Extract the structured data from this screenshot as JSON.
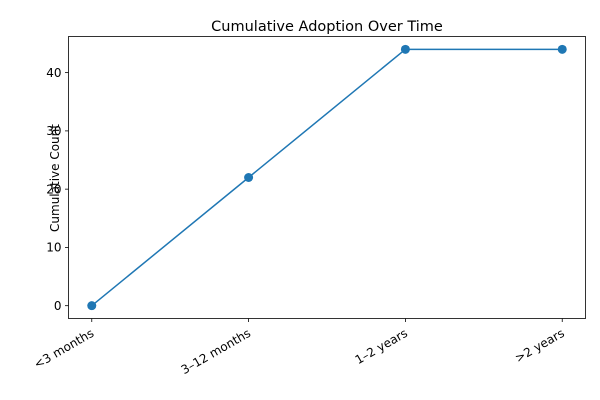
{
  "chart_data": {
    "type": "line",
    "title": "Cumulative Adoption Over Time",
    "xlabel": "",
    "ylabel": "Cumulative Count",
    "categories": [
      "<3 months",
      "3–12 months",
      "1–2 years",
      ">2 years"
    ],
    "series": [
      {
        "values": [
          0,
          22,
          44,
          44
        ],
        "color": "#1f77b4",
        "marker": "circle"
      }
    ],
    "ylim": [
      -2.2,
      46.2
    ],
    "yticks": [
      0,
      10,
      20,
      30,
      40
    ],
    "grid": false,
    "legend": "none"
  }
}
